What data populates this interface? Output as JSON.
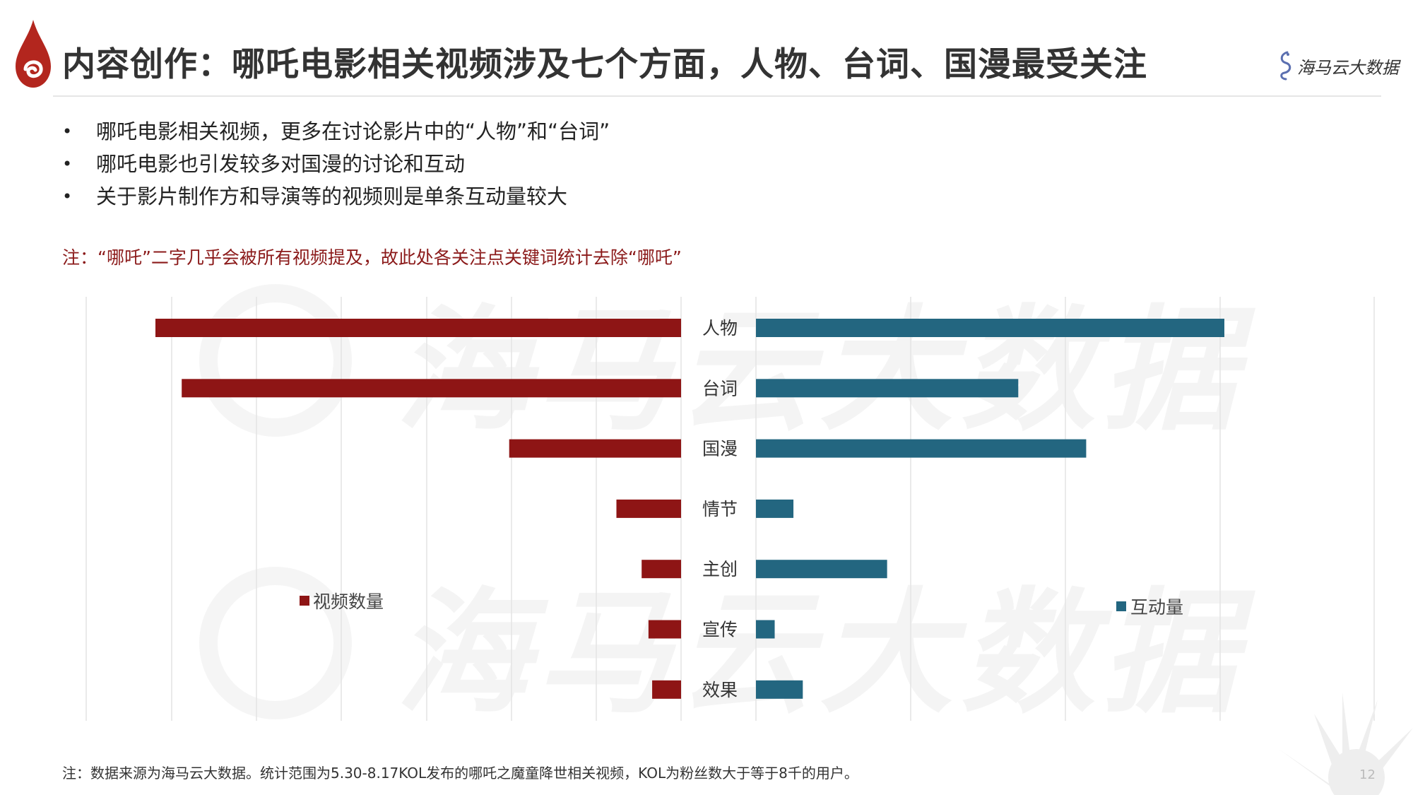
{
  "page": {
    "title": "内容创作：哪吒电影相关视频涉及七个方面，人物、台词、国漫最受关注",
    "brand": "海马云大数据",
    "bullets": [
      "哪吒电影相关视频，更多在讨论影片中的“人物”和“台词”",
      "哪吒电影也引发较多对国漫的讨论和互动",
      "关于影片制作方和导演等的视频则是单条互动量较大"
    ],
    "note_top": "注：“哪吒”二字几乎会被所有视频提及，故此处各关注点关键词统计去除“哪吒”",
    "footnote": "注：数据来源为海马云大数据。统计范围为5.30-8.17KOL发布的哪吒之魔童降世相关视频，KOL为粉丝数大于等于8千的用户。",
    "page_number": "12",
    "watermark": "海马云大数据"
  },
  "colors": {
    "accent_red": "#8b1a1a",
    "bar_red": "#8e1515",
    "bar_teal": "#236680",
    "gridline": "#e4e4e4"
  },
  "chart_data": {
    "type": "bar",
    "orientation": "horizontal-diverging",
    "categories": [
      "人物",
      "台词",
      "国漫",
      "情节",
      "主创",
      "宣传",
      "效果"
    ],
    "series": [
      {
        "name": "视频数量",
        "side": "left",
        "color": "#8e1515",
        "values": [
          100,
          95,
          32.7,
          12.3,
          7.5,
          6.2,
          5.5
        ]
      },
      {
        "name": "互动量",
        "side": "right",
        "color": "#236680",
        "values": [
          100,
          56,
          70.5,
          8,
          28,
          4,
          10
        ]
      }
    ],
    "grid": true,
    "axis_labels_shown": false,
    "legend": {
      "left": "middle-left",
      "right": "middle-right"
    }
  }
}
